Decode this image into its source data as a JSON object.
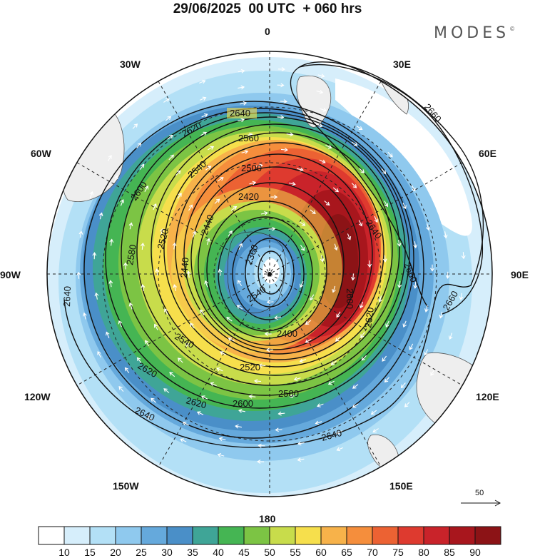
{
  "header": {
    "title": "29/06/2025  00 UTC  + 060 hrs",
    "brand": "MODES"
  },
  "map": {
    "projection": "polar-stereographic-south",
    "pole_marker": true,
    "longitude_labels": [
      {
        "lon": 0,
        "label": "0"
      },
      {
        "lon": 30,
        "label": "30E"
      },
      {
        "lon": 60,
        "label": "60E"
      },
      {
        "lon": 90,
        "label": "90E"
      },
      {
        "lon": 120,
        "label": "120E"
      },
      {
        "lon": 150,
        "label": "150E"
      },
      {
        "lon": 180,
        "label": "180"
      },
      {
        "lon": -150,
        "label": "150W"
      },
      {
        "lon": -120,
        "label": "120W"
      },
      {
        "lon": -90,
        "label": "90W"
      },
      {
        "lon": -60,
        "label": "60W"
      },
      {
        "lon": -30,
        "label": "30W"
      }
    ],
    "height_contours": [
      "2360",
      "2400",
      "2420",
      "2440",
      "2500",
      "2520",
      "2540",
      "2560",
      "2580",
      "2600",
      "2620",
      "2640",
      "2660"
    ],
    "wind_reference_vector": "50"
  },
  "colorbar": {
    "ticks": [
      "10",
      "15",
      "20",
      "25",
      "30",
      "35",
      "40",
      "45",
      "50",
      "55",
      "60",
      "65",
      "70",
      "75",
      "80",
      "85",
      "90"
    ],
    "colors": [
      "#ffffff",
      "#d6eefb",
      "#b3e0f6",
      "#8fc9ee",
      "#65a9dc",
      "#4a8fc8",
      "#3fa597",
      "#45b553",
      "#7cc444",
      "#c8dc4b",
      "#f6df4c",
      "#f7b24a",
      "#f58e3c",
      "#ec6233",
      "#de3a2f",
      "#c9232a",
      "#a8161d",
      "#8c1316"
    ]
  }
}
